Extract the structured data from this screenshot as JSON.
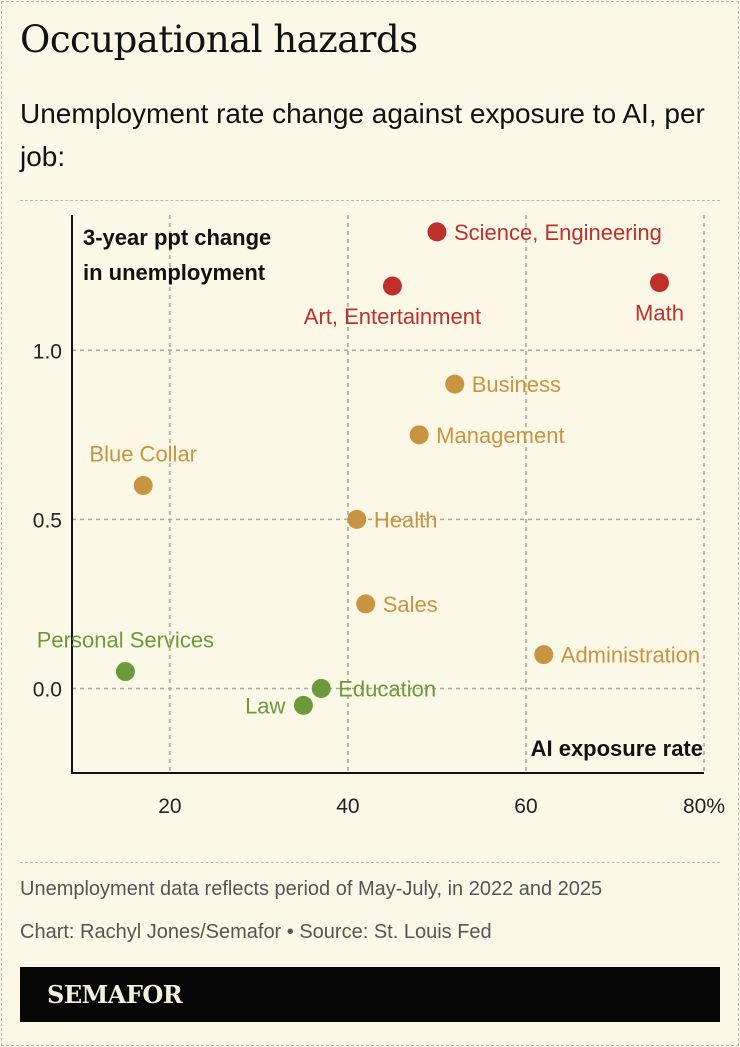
{
  "header": {
    "title": "Occupational hazards",
    "subtitle": "Unemployment rate change against exposure to AI, per job:"
  },
  "chart_data": {
    "type": "scatter",
    "xlabel": "AI exposure rate",
    "ylabel": "3-year ppt change in unemployment",
    "ylabel_lines": [
      "3-year ppt change",
      "in unemployment"
    ],
    "xlim": [
      9,
      80
    ],
    "ylim": [
      -0.25,
      1.4
    ],
    "xticks": [
      20,
      40,
      60,
      80
    ],
    "xtick_labels": [
      "20",
      "40",
      "60",
      "80%"
    ],
    "yticks": [
      0.0,
      0.5,
      1.0
    ],
    "ytick_labels": [
      "0.0",
      "0.5",
      "1.0"
    ],
    "grid": true,
    "colors": {
      "high": "#c0302a",
      "mid": "#c9943f",
      "low": "#6b9a3c"
    },
    "points": [
      {
        "label": "Science, Engineering",
        "x": 50,
        "y": 1.35,
        "group": "high",
        "label_pos": "right"
      },
      {
        "label": "Art, Entertainment",
        "x": 45,
        "y": 1.19,
        "group": "high",
        "label_pos": "below"
      },
      {
        "label": "Math",
        "x": 75,
        "y": 1.2,
        "group": "high",
        "label_pos": "below"
      },
      {
        "label": "Business",
        "x": 52,
        "y": 0.9,
        "group": "mid",
        "label_pos": "right"
      },
      {
        "label": "Management",
        "x": 48,
        "y": 0.75,
        "group": "mid",
        "label_pos": "right"
      },
      {
        "label": "Blue Collar",
        "x": 17,
        "y": 0.6,
        "group": "mid",
        "label_pos": "above"
      },
      {
        "label": "Health",
        "x": 41,
        "y": 0.5,
        "group": "mid",
        "label_pos": "right"
      },
      {
        "label": "Sales",
        "x": 42,
        "y": 0.25,
        "group": "mid",
        "label_pos": "right"
      },
      {
        "label": "Administration",
        "x": 62,
        "y": 0.1,
        "group": "mid",
        "label_pos": "right"
      },
      {
        "label": "Personal Services",
        "x": 15,
        "y": 0.05,
        "group": "low",
        "label_pos": "above"
      },
      {
        "label": "Education",
        "x": 37,
        "y": 0.0,
        "group": "low",
        "label_pos": "right"
      },
      {
        "label": "Law",
        "x": 35,
        "y": -0.05,
        "group": "low",
        "label_pos": "left"
      }
    ]
  },
  "footer": {
    "note": "Unemployment data reflects period of May-July, in 2022 and 2025",
    "credit": "Chart: Rachyl Jones/Semafor • Source: St. Louis Fed",
    "logo": "SEMAFOR"
  }
}
